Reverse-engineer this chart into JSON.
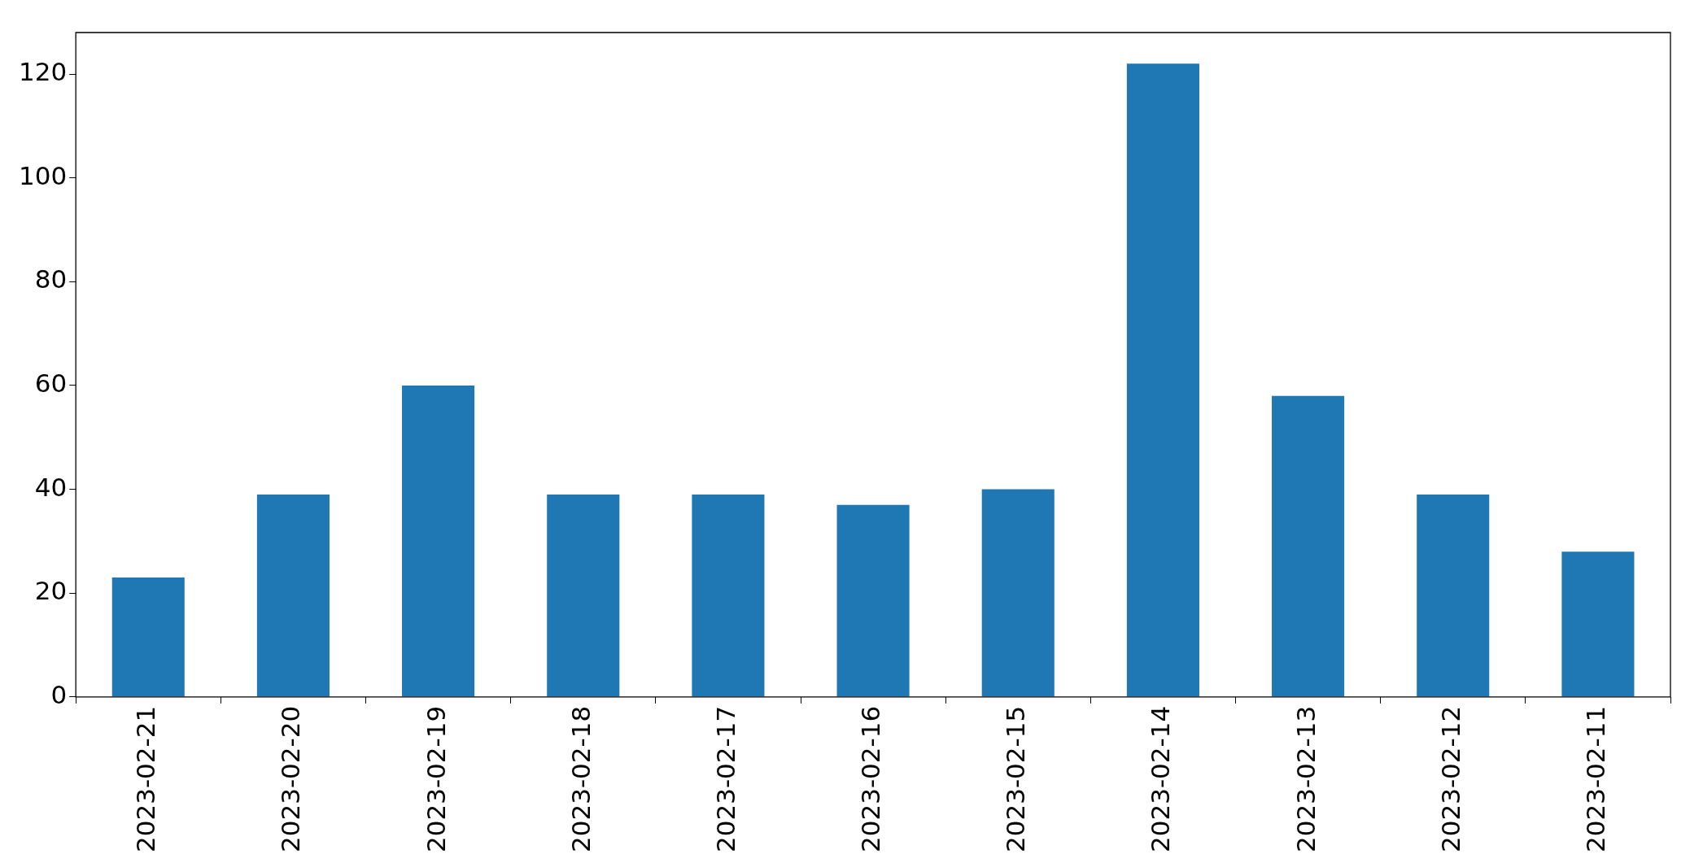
{
  "chart_data": {
    "type": "bar",
    "categories": [
      "2023-02-21",
      "2023-02-20",
      "2023-02-19",
      "2023-02-18",
      "2023-02-17",
      "2023-02-16",
      "2023-02-15",
      "2023-02-14",
      "2023-02-13",
      "2023-02-12",
      "2023-02-11"
    ],
    "values": [
      23,
      39,
      60,
      39,
      39,
      37,
      40,
      122,
      58,
      39,
      28
    ],
    "color": "#1f77b4",
    "ylim": [
      0,
      128
    ],
    "yticks": [
      0,
      20,
      40,
      60,
      80,
      100,
      120
    ],
    "grid": false,
    "legend": false
  }
}
